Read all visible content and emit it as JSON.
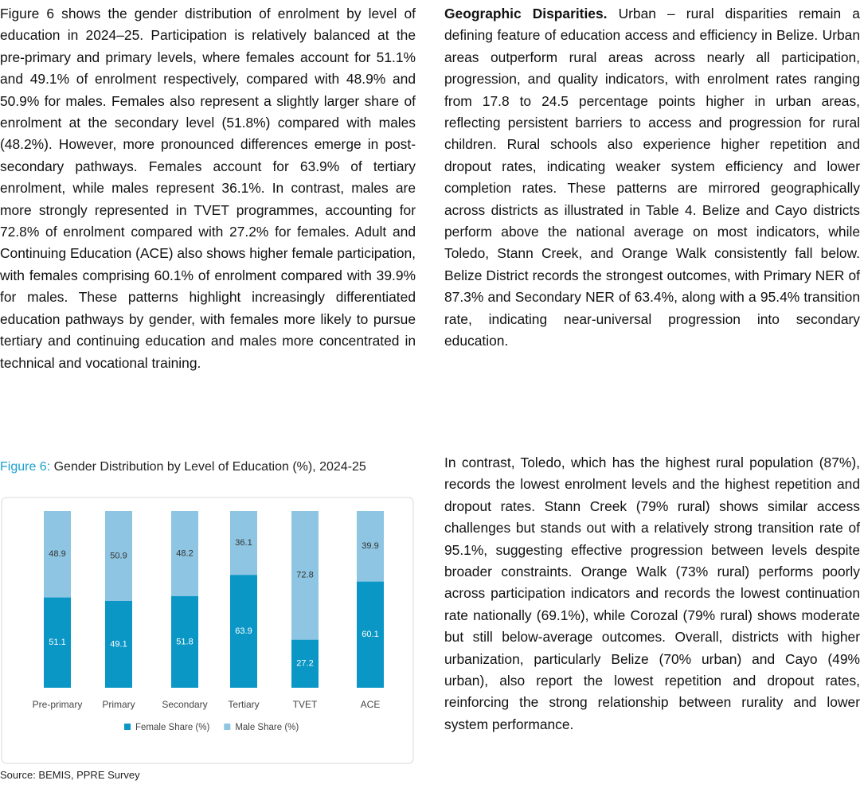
{
  "left_paragraph": "Figure 6 shows the gender distribution of enrolment by level of education in 2024–25. Participation is relatively balanced at the pre-primary and primary levels, where females account for 51.1% and 49.1% of enrolment respectively, compared with 48.9% and 50.9% for males. Females also represent a slightly larger share of enrolment at the secondary level (51.8%) compared with males (48.2%). However, more pronounced differences emerge in post-secondary pathways. Females account for 63.9% of tertiary enrolment, while males represent 36.1%. In contrast, males are more strongly represented in TVET programmes, accounting for 72.8% of enrolment compared with 27.2% for females. Adult and Continuing Education (ACE) also shows higher female participation, with females comprising 60.1% of enrolment compared with 39.9% for males. These patterns highlight increasingly differentiated education pathways by gender, with females more likely to pursue tertiary and continuing education and males more concentrated in technical and vocational training.",
  "figure": {
    "caption_label": "Figure 6:",
    "caption_text": "Gender Distribution by Level of Education (%), 2024-25",
    "source": "Source: BEMIS, PPRE Survey"
  },
  "chart_data": {
    "type": "stacked_bar",
    "categories": [
      "Pre-primary",
      "Primary",
      "Secondary",
      "Tertiary",
      "TVET",
      "ACE"
    ],
    "series": [
      {
        "name": "Female Share (%)",
        "color": "#0a97c6",
        "values": [
          51.1,
          49.1,
          51.8,
          63.9,
          27.2,
          60.1
        ]
      },
      {
        "name": "Male Share (%)",
        "color": "#8ec5e2",
        "values": [
          48.9,
          50.9,
          48.2,
          36.1,
          72.8,
          39.9
        ]
      }
    ],
    "ylim": [
      0,
      100
    ],
    "grid": false,
    "legend": "bottom"
  },
  "right_paragraphs": [
    {
      "heading": "Geographic Disparities.",
      "text": "Urban – rural disparities remain a defining feature of education access and efficiency in Belize. Urban areas outperform rural areas across nearly all participation, progression, and quality indicators, with enrolment rates ranging from 17.8 to 24.5 percentage points higher in urban areas, reflecting persistent barriers to access and progression for rural children. Rural schools also experience higher repetition and dropout rates, indicating weaker system efficiency and lower completion rates. These patterns are mirrored geographically across districts as illustrated in Table 4. Belize and Cayo districts perform above the national average on most indicators, while Toledo, Stann Creek, and Orange Walk consistently fall below. Belize District records the strongest outcomes, with Primary NER of 87.3% and Secondary NER of 63.4%, along with a 95.4% transition rate, indicating near-universal progression into secondary education."
    },
    {
      "text": "In contrast, Toledo, which has the highest rural population (87%), records the lowest enrolment levels and the highest repetition and dropout rates. Stann Creek (79% rural) shows similar access challenges but stands out with a relatively strong transition rate of 95.1%, suggesting effective progression between levels despite broader constraints. Orange Walk (73% rural) performs poorly across participation indicators and records the lowest continuation rate nationally (69.1%), while Corozal (79% rural) shows moderate but still below-average outcomes. Overall, districts with higher urbanization, particularly Belize (70% urban) and Cayo (49% urban), also report the lowest repetition and dropout rates, reinforcing the strong relationship between rurality and lower system performance."
    }
  ]
}
